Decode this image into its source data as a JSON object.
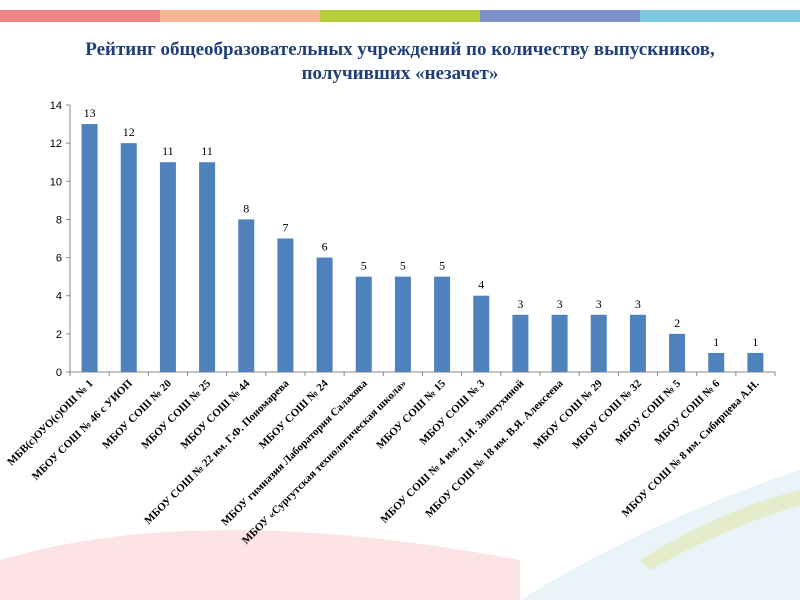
{
  "stripe_colors": [
    "#f08484",
    "#f5b595",
    "#b6cd3c",
    "#7f90c9",
    "#7ec8de"
  ],
  "chart_data": {
    "type": "bar",
    "title": "Рейтинг общеобразовательных учреждений по количеству выпускников, получивших «незачет»",
    "title_lines": [
      "Рейтинг общеобразовательных учреждений по количеству выпускников,",
      "получивших «незачет»"
    ],
    "categories": [
      "МБВ(с)ОУО(с)ОШ № 1",
      "МБОУ СОШ № 46 с УИОП",
      "МБОУ СОШ № 20",
      "МБОУ СОШ № 25",
      "МБОУ СОШ № 44",
      "МБОУ СОШ № 22 им. Г.Ф. Пономарева",
      "МБОУ СОШ № 24",
      "МБОУ гимназия Лаборатория Салахова",
      "МБОУ «Сургутская технологическая школа»",
      "МБОУ СОШ № 15",
      "МБОУ СОШ № 3",
      "МБОУ СОШ № 4 им. Л.И. Золотухиной",
      "МБОУ СОШ № 18 им. В.Я. Алексеева",
      "МБОУ СОШ № 29",
      "МБОУ СОШ № 32",
      "МБОУ СОШ № 5",
      "МБОУ СОШ № 6",
      "МБОУ СОШ № 8 им. Сибирцева А.Н."
    ],
    "values": [
      13,
      12,
      11,
      11,
      8,
      7,
      6,
      5,
      5,
      5,
      4,
      3,
      3,
      3,
      3,
      2,
      1,
      1
    ],
    "ylim": [
      0,
      14
    ],
    "yticks": [
      0,
      2,
      4,
      6,
      8,
      10,
      12,
      14
    ],
    "bar_color": "#4f81bd",
    "grid": false,
    "data_labels": true
  }
}
